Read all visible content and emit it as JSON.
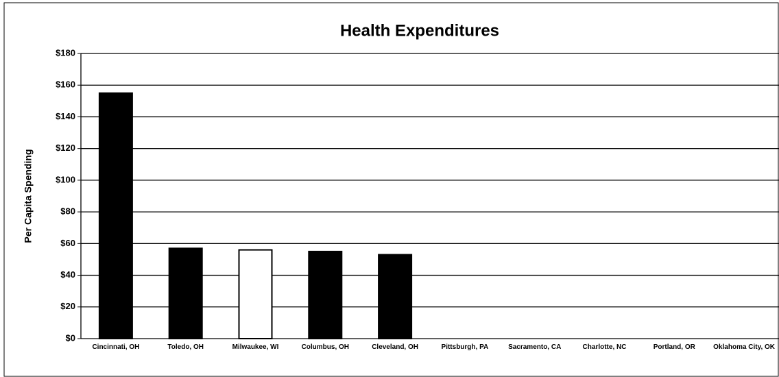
{
  "chart_data": {
    "type": "bar",
    "title": "Health Expenditures",
    "y_label": "Per Capita Spending",
    "categories": [
      "Cincinnati, OH",
      "Toledo, OH",
      "Milwaukee, WI",
      "Columbus, OH",
      "Cleveland, OH",
      "Pittsburgh, PA",
      "Sacramento, CA",
      "Charlotte, NC",
      "Portland, OR",
      "Oklahoma City, OK"
    ],
    "values": [
      155,
      57,
      56,
      55,
      53,
      null,
      null,
      null,
      null,
      null
    ],
    "colors": [
      "#000000",
      "#000000",
      "#ffffff",
      "#000000",
      "#000000",
      "#000000",
      "#000000",
      "#000000",
      "#000000",
      "#000000"
    ],
    "ylim": [
      0,
      180
    ],
    "yticks": [
      {
        "value": 0,
        "label": "$0"
      },
      {
        "value": 20,
        "label": "$20"
      },
      {
        "value": 40,
        "label": "$40"
      },
      {
        "value": 60,
        "label": "$60"
      },
      {
        "value": 80,
        "label": "$80"
      },
      {
        "value": 100,
        "label": "$100"
      },
      {
        "value": 120,
        "label": "$120"
      },
      {
        "value": 140,
        "label": "$140"
      },
      {
        "value": 160,
        "label": "$160"
      },
      {
        "value": 180,
        "label": "$180"
      }
    ],
    "grid": true
  }
}
